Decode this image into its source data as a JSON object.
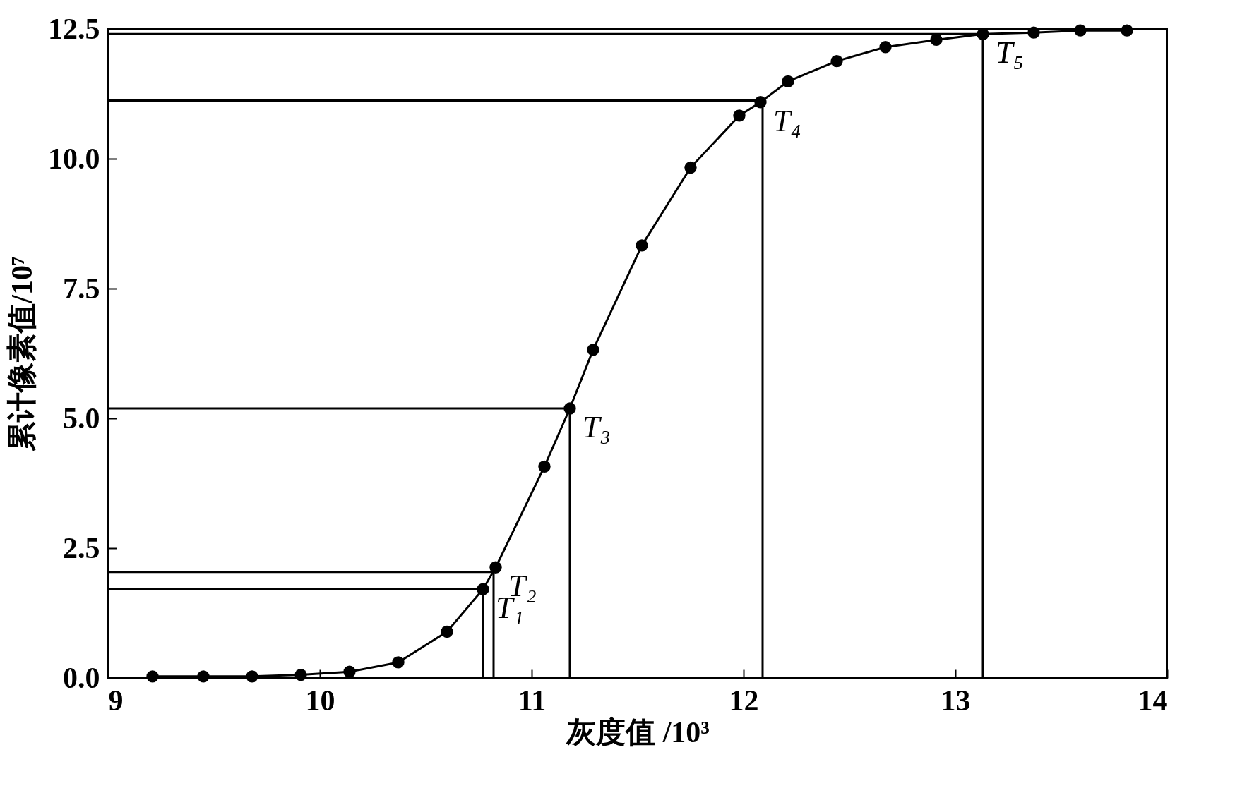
{
  "chart_data": {
    "type": "line",
    "xlabel": "灰度值 /10³",
    "ylabel": "累计像素值/10⁷",
    "xlim": [
      9,
      14
    ],
    "ylim": [
      0,
      12.5
    ],
    "xticks": [
      9,
      10,
      11,
      12,
      13,
      14
    ],
    "yticks": [
      {
        "value": 0,
        "label": "0.0"
      },
      2.5,
      {
        "value": 5,
        "label": "5.0"
      },
      7.5,
      {
        "value": 10,
        "label": "10.0"
      },
      12.5
    ],
    "marker": "circle",
    "grid": false,
    "series": [
      {
        "color": "#000000",
        "x": [
          9.21,
          9.45,
          9.68,
          9.91,
          10.14,
          10.37,
          10.6,
          10.77,
          10.83,
          11.06,
          11.18,
          11.29,
          11.52,
          11.75,
          11.98,
          12.08,
          12.21,
          12.44,
          12.67,
          12.91,
          13.13,
          13.37,
          13.59,
          13.81
        ],
        "values": [
          0.03,
          0.03,
          0.03,
          0.06,
          0.12,
          0.3,
          0.89,
          1.71,
          2.13,
          4.07,
          5.19,
          6.32,
          8.33,
          9.83,
          10.83,
          11.09,
          11.49,
          11.88,
          12.15,
          12.29,
          12.4,
          12.43,
          12.47,
          12.47
        ]
      },
      {
        "type": "line",
        "marker": "none",
        "color": "#000000",
        "x": [
          9,
          10.77,
          10.77
        ],
        "values": [
          1.71,
          1.71,
          0
        ]
      },
      {
        "type": "line",
        "marker": "none",
        "color": "#000000",
        "x": [
          9,
          10.82,
          10.82
        ],
        "values": [
          2.04,
          2.04,
          0
        ]
      },
      {
        "type": "line",
        "marker": "none",
        "color": "#000000",
        "x": [
          9,
          11.18,
          11.18
        ],
        "values": [
          5.19,
          5.19,
          0
        ]
      },
      {
        "type": "line",
        "marker": "none",
        "color": "#000000",
        "x": [
          9,
          12.09,
          12.09
        ],
        "values": [
          11.12,
          11.12,
          0
        ]
      },
      {
        "type": "line",
        "marker": "none",
        "color": "#000000",
        "x": [
          9,
          13.13,
          13.13
        ],
        "values": [
          12.4,
          12.4,
          0
        ]
      }
    ],
    "annotations": [
      {
        "text": "T₁",
        "x": 10.77,
        "y": 1.71
      },
      {
        "text": "T₂",
        "x": 10.83,
        "y": 2.13
      },
      {
        "text": "T₃",
        "x": 11.18,
        "y": 5.19
      },
      {
        "text": "T₄",
        "x": 12.08,
        "y": 11.09
      },
      {
        "text": "T₅",
        "x": 13.13,
        "y": 12.4
      }
    ]
  }
}
